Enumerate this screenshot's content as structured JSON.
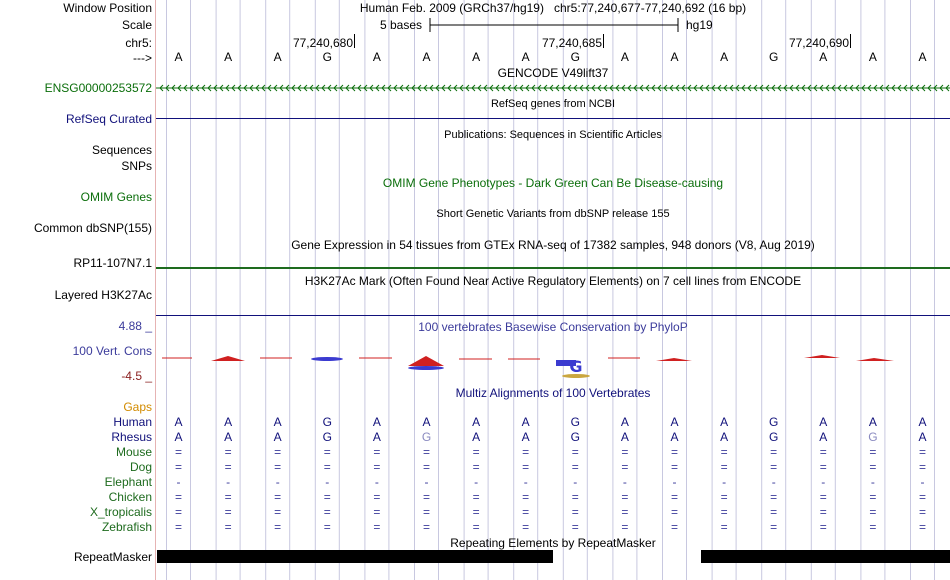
{
  "header": {
    "window_position_label": "Window Position",
    "window_position_value": "Human Feb. 2009 (GRCh37/hg19)   chr5:77,240,677-77,240,692 (16 bp)",
    "scale_label": "Scale",
    "scale_text": "5 bases",
    "scale_assembly": "hg19",
    "chrom_label": "chr5:",
    "arrow_label": "--->",
    "positions": [
      "77,240,680",
      "77,240,685",
      "77,240,690"
    ]
  },
  "bases": [
    "A",
    "A",
    "A",
    "G",
    "A",
    "A",
    "A",
    "A",
    "G",
    "A",
    "A",
    "A",
    "G",
    "A",
    "A",
    "A"
  ],
  "tracks": {
    "gencode": {
      "title": "GENCODE V49lift37",
      "label": "ENSG00000253572",
      "color": "#0b6e0b"
    },
    "refseq": {
      "title": "RefSeq genes from NCBI",
      "label": "RefSeq Curated",
      "color": "#11117b"
    },
    "publications": {
      "title": "Publications: Sequences in Scientific Articles",
      "label_sequences": "Sequences"
    },
    "snps": {
      "label": "SNPs"
    },
    "omim": {
      "title": "OMIM Gene Phenotypes - Dark Green Can Be Disease-causing",
      "label": "OMIM Genes",
      "color": "#0b6e0b"
    },
    "dbsnp": {
      "title": "Short Genetic Variants from dbSNP release 155",
      "label": "Common dbSNP(155)"
    },
    "gtex": {
      "title": "Gene Expression in 54 tissues from GTEx RNA-seq of 17382 samples, 948 donors (V8, Aug 2019)",
      "label": "RP11-107N7.1"
    },
    "h3k27ac": {
      "title": "H3K27Ac Mark (Often Found Near Active Regulatory Elements) on 7 cell lines from ENCODE",
      "label": "Layered H3K27Ac"
    },
    "conservation": {
      "title": "100 vertebrates Basewise Conservation by PhyloP",
      "label": "100 Vert. Cons",
      "max": "4.88 _",
      "min": "-4.5 _",
      "color": "#3b3b9b"
    },
    "multiz": {
      "title": "Multiz Alignments of 100 Vertebrates",
      "gaps_label": "Gaps",
      "species": [
        {
          "name": "Human",
          "row": [
            "A",
            "A",
            "A",
            "G",
            "A",
            "A",
            "A",
            "A",
            "G",
            "A",
            "A",
            "A",
            "G",
            "A",
            "A",
            "A"
          ]
        },
        {
          "name": "Rhesus",
          "row": [
            "A",
            "A",
            "A",
            "G",
            "A",
            "G",
            "A",
            "A",
            "G",
            "A",
            "A",
            "A",
            "G",
            "A",
            "G",
            "A"
          ]
        },
        {
          "name": "Mouse",
          "row": [
            "=",
            "=",
            "=",
            "=",
            "=",
            "=",
            "=",
            "=",
            "=",
            "=",
            "=",
            "=",
            "=",
            "=",
            "=",
            "="
          ]
        },
        {
          "name": "Dog",
          "row": [
            "=",
            "=",
            "=",
            "=",
            "=",
            "=",
            "=",
            "=",
            "=",
            "=",
            "=",
            "=",
            "=",
            "=",
            "=",
            "="
          ]
        },
        {
          "name": "Elephant",
          "row": [
            "-",
            "-",
            "-",
            "-",
            "-",
            "-",
            "-",
            "-",
            "-",
            "-",
            "-",
            "-",
            "-",
            "-",
            "-",
            "-"
          ]
        },
        {
          "name": "Chicken",
          "row": [
            "=",
            "=",
            "=",
            "=",
            "=",
            "=",
            "=",
            "=",
            "=",
            "=",
            "=",
            "=",
            "=",
            "=",
            "=",
            "="
          ]
        },
        {
          "name": "X_tropicalis",
          "row": [
            "=",
            "=",
            "=",
            "=",
            "=",
            "=",
            "=",
            "=",
            "=",
            "=",
            "=",
            "=",
            "=",
            "=",
            "=",
            "="
          ]
        },
        {
          "name": "Zebrafish",
          "row": [
            "=",
            "=",
            "=",
            "=",
            "=",
            "=",
            "=",
            "=",
            "=",
            "=",
            "=",
            "=",
            "=",
            "=",
            "=",
            "="
          ]
        }
      ]
    },
    "repeatmasker": {
      "title": "Repeating Elements by RepeatMasker",
      "label": "RepeatMasker"
    }
  },
  "colors": {
    "navy": "#11117b",
    "green": "#0b6e0b",
    "phylop_pos": "#3b3bd0",
    "phylop_neg": "#d02020",
    "guide": "#c8c8e0"
  }
}
